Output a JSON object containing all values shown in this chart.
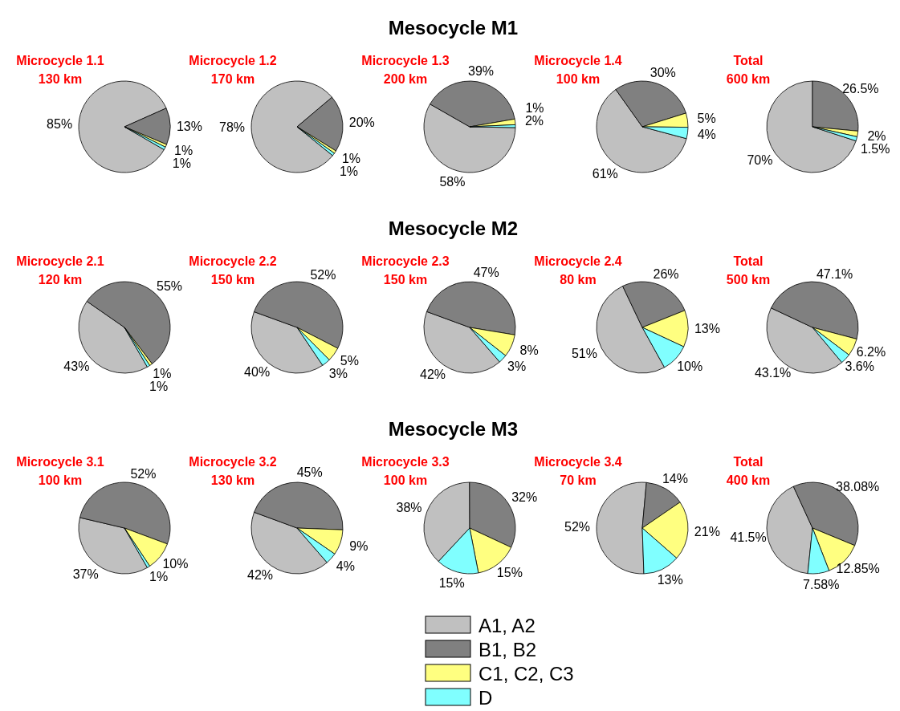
{
  "chart_data": [
    {
      "type": "pie",
      "title": "Microcycle 1.1",
      "subtitle": "130 km",
      "annotations": [
        "Mesocycle M1"
      ],
      "categories": [
        null,
        null,
        null,
        null
      ],
      "values": [
        85,
        13,
        1,
        1
      ],
      "value_labels": [
        "85%",
        "13%",
        "1%",
        "1%"
      ],
      "colors": [
        "#c0c0c0",
        "#808080",
        "#ffff80",
        "#80ffff"
      ]
    },
    {
      "type": "pie",
      "title": "Microcycle 1.2",
      "subtitle": "170 km",
      "categories": [
        null,
        null,
        null,
        null
      ],
      "values": [
        78,
        20,
        1,
        1
      ],
      "value_labels": [
        "78%",
        "20%",
        "1%",
        "1%"
      ],
      "colors": [
        "#c0c0c0",
        "#808080",
        "#ffff80",
        "#80ffff"
      ]
    },
    {
      "type": "pie",
      "title": "Microcycle 1.3",
      "subtitle": "200 km",
      "categories": [
        null,
        null,
        null,
        null
      ],
      "values": [
        58,
        39,
        2,
        1
      ],
      "value_labels": [
        "58%",
        "39%",
        "2%",
        "1%"
      ],
      "colors": [
        "#c0c0c0",
        "#808080",
        "#ffff80",
        "#80ffff"
      ]
    },
    {
      "type": "pie",
      "title": "Microcycle 1.4",
      "subtitle": "100 km",
      "categories": [
        null,
        null,
        null,
        null
      ],
      "values": [
        61,
        30,
        5,
        4
      ],
      "value_labels": [
        "61%",
        "30%",
        "5%",
        "4%"
      ],
      "colors": [
        "#c0c0c0",
        "#808080",
        "#ffff80",
        "#80ffff"
      ]
    },
    {
      "type": "pie",
      "title": "Total",
      "subtitle": "600 km",
      "categories": [
        null,
        null,
        null,
        null
      ],
      "values": [
        70,
        26.5,
        2,
        1.5
      ],
      "value_labels": [
        "70%",
        "26.5%",
        "2%",
        "1.5%"
      ],
      "colors": [
        "#c0c0c0",
        "#808080",
        "#ffff80",
        "#80ffff"
      ]
    },
    {
      "type": "pie",
      "title": "Microcycle 2.1",
      "subtitle": "120 km",
      "annotations": [
        "Mesocycle M2"
      ],
      "categories": [
        null,
        null,
        null,
        null
      ],
      "values": [
        43,
        55,
        1,
        1
      ],
      "value_labels": [
        "43%",
        "55%",
        "1%",
        "1%"
      ],
      "colors": [
        "#c0c0c0",
        "#808080",
        "#ffff80",
        "#80ffff"
      ]
    },
    {
      "type": "pie",
      "title": "Microcycle 2.2",
      "subtitle": "150 km",
      "categories": [
        null,
        null,
        null,
        null
      ],
      "values": [
        40,
        52,
        5,
        3
      ],
      "value_labels": [
        "40%",
        "52%",
        "5%",
        "3%"
      ],
      "colors": [
        "#c0c0c0",
        "#808080",
        "#ffff80",
        "#80ffff"
      ]
    },
    {
      "type": "pie",
      "title": "Microcycle 2.3",
      "subtitle": "150 km",
      "categories": [
        null,
        null,
        null,
        null
      ],
      "values": [
        42,
        47,
        8,
        3
      ],
      "value_labels": [
        "42%",
        "47%",
        "8%",
        "3%"
      ],
      "colors": [
        "#c0c0c0",
        "#808080",
        "#ffff80",
        "#80ffff"
      ]
    },
    {
      "type": "pie",
      "title": "Microcycle 2.4",
      "subtitle": "80 km",
      "categories": [
        null,
        null,
        null,
        null
      ],
      "values": [
        51,
        26,
        13,
        10
      ],
      "value_labels": [
        "51%",
        "26%",
        "13%",
        "10%"
      ],
      "colors": [
        "#c0c0c0",
        "#808080",
        "#ffff80",
        "#80ffff"
      ]
    },
    {
      "type": "pie",
      "title": "Total",
      "subtitle": "500 km",
      "categories": [
        null,
        null,
        null,
        null
      ],
      "values": [
        43.1,
        47.1,
        6.2,
        3.6
      ],
      "value_labels": [
        "43.1%",
        "47.1%",
        "6.2%",
        "3.6%"
      ],
      "colors": [
        "#c0c0c0",
        "#808080",
        "#ffff80",
        "#80ffff"
      ]
    },
    {
      "type": "pie",
      "title": "Microcycle 3.1",
      "subtitle": "100 km",
      "annotations": [
        "Mesocycle M3"
      ],
      "categories": [
        null,
        null,
        null,
        null
      ],
      "values": [
        37,
        52,
        10,
        1
      ],
      "value_labels": [
        "37%",
        "52%",
        "10%",
        "1%"
      ],
      "colors": [
        "#c0c0c0",
        "#808080",
        "#ffff80",
        "#80ffff"
      ]
    },
    {
      "type": "pie",
      "title": "Microcycle 3.2",
      "subtitle": "130 km",
      "categories": [
        null,
        null,
        null,
        null
      ],
      "values": [
        42,
        45,
        9,
        4
      ],
      "value_labels": [
        "42%",
        "45%",
        "9%",
        "4%"
      ],
      "colors": [
        "#c0c0c0",
        "#808080",
        "#ffff80",
        "#80ffff"
      ]
    },
    {
      "type": "pie",
      "title": "Microcycle 3.3",
      "subtitle": "100 km",
      "categories": [
        null,
        null,
        null,
        null
      ],
      "values": [
        38,
        32,
        15,
        15
      ],
      "value_labels": [
        "38%",
        "32%",
        "15%",
        "15%"
      ],
      "colors": [
        "#c0c0c0",
        "#808080",
        "#ffff80",
        "#80ffff"
      ]
    },
    {
      "type": "pie",
      "title": "Microcycle 3.4",
      "subtitle": "70 km",
      "categories": [
        null,
        null,
        null,
        null
      ],
      "values": [
        52,
        14,
        21,
        13
      ],
      "value_labels": [
        "52%",
        "14%",
        "21%",
        "13%"
      ],
      "colors": [
        "#c0c0c0",
        "#808080",
        "#ffff80",
        "#80ffff"
      ]
    },
    {
      "type": "pie",
      "title": "Total",
      "subtitle": "400 km",
      "legend": "bottom",
      "categories": [
        "A1, A2",
        "B1, B2",
        "C1, C2, C3",
        "D"
      ],
      "values": [
        41.5,
        38.08,
        12.85,
        7.58
      ],
      "value_labels": [
        "41.5%",
        "38.08%",
        "12.85%",
        "7.58%"
      ],
      "colors": [
        "#c0c0c0",
        "#808080",
        "#ffff80",
        "#80ffff"
      ]
    }
  ]
}
